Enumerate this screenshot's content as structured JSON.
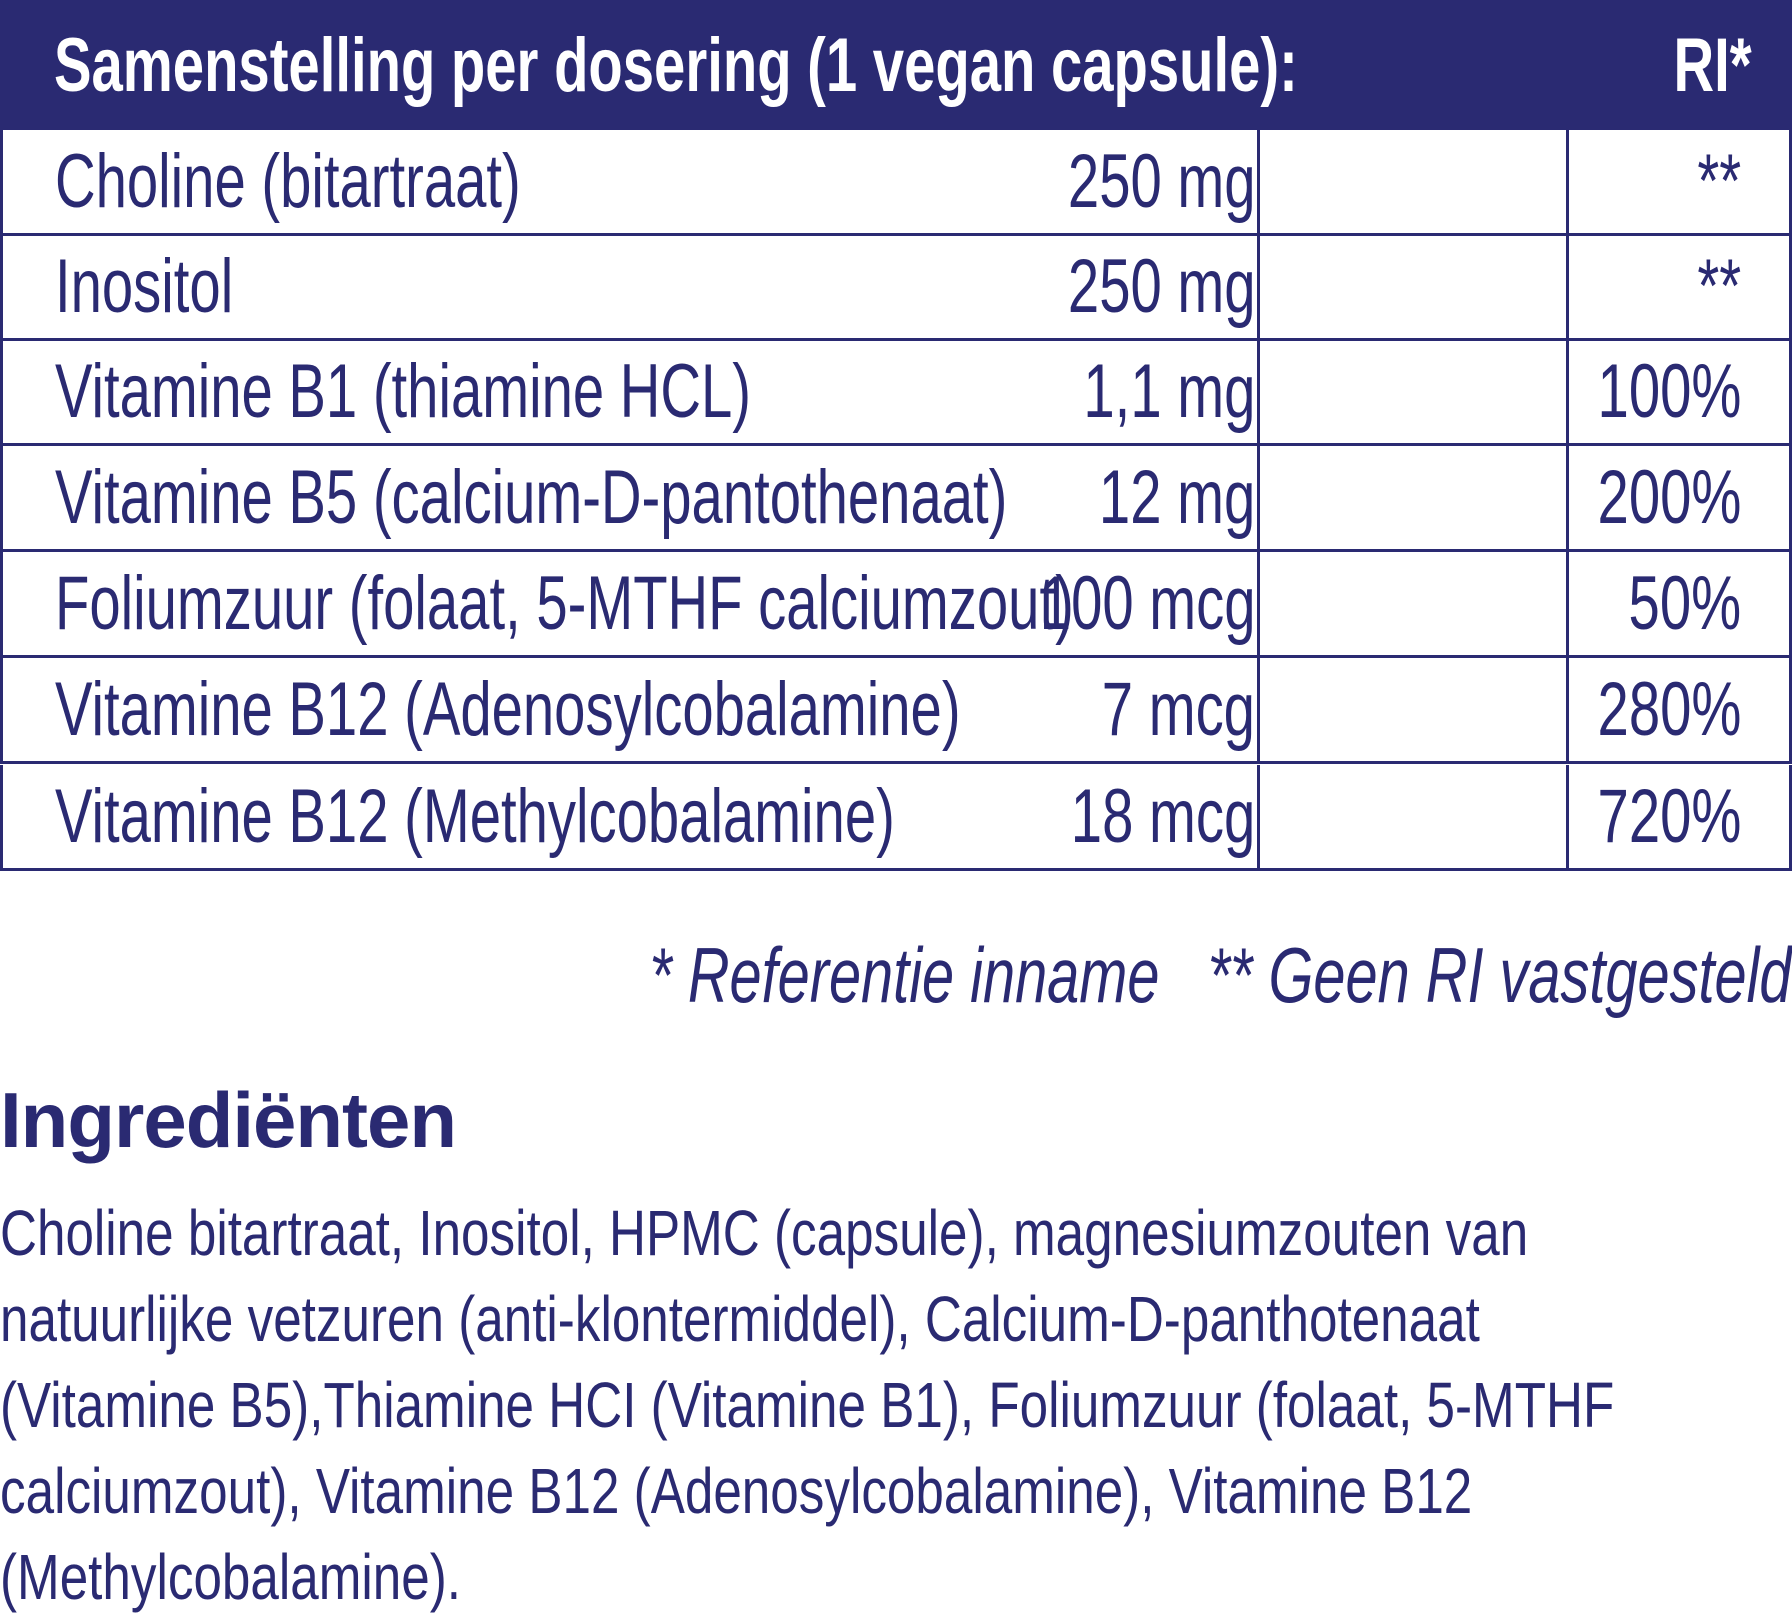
{
  "table": {
    "header_title": "Samenstelling per dosering (1 vegan capsule):",
    "header_ri": "RI*",
    "rows": [
      {
        "name": "Choline (bitartraat)",
        "amount": "250 mg",
        "ri": "**"
      },
      {
        "name": "Inositol",
        "amount": "250 mg",
        "ri": "**"
      },
      {
        "name": "Vitamine B1 (thiamine HCL)",
        "amount": "1,1 mg",
        "ri": "100%"
      },
      {
        "name": "Vitamine B5 (calcium-D-pantothenaat)",
        "amount": "12 mg",
        "ri": "200%"
      },
      {
        "name": "Foliumzuur (folaat, 5-MTHF calciumzout)",
        "amount": "100 mcg",
        "ri": "50%"
      },
      {
        "name": "Vitamine B12 (Adenosylcobalamine)",
        "amount": "7 mcg",
        "ri": "280%"
      },
      {
        "name": "Vitamine B12 (Methylcobalamine)",
        "amount": "18 mcg",
        "ri": "720%"
      }
    ]
  },
  "footnote": "* Referentie inname   ** Geen RI vastgesteld",
  "ingredients": {
    "heading": "Ingrediënten",
    "lines": [
      "Choline bitartraat, Inositol, HPMC (capsule), magnesiumzouten van",
      "natuurlijke vetzuren (anti-klontermiddel), Calcium-D-panthotenaat",
      "(Vitamine B5),Thiamine HCI (Vitamine B1), Foliumzuur (folaat, 5-MTHF",
      "calciumzout), Vitamine B12 (Adenosylcobalamine), Vitamine B12",
      "(Methylcobalamine)."
    ]
  },
  "colors": {
    "brand": "#2a2a72"
  }
}
